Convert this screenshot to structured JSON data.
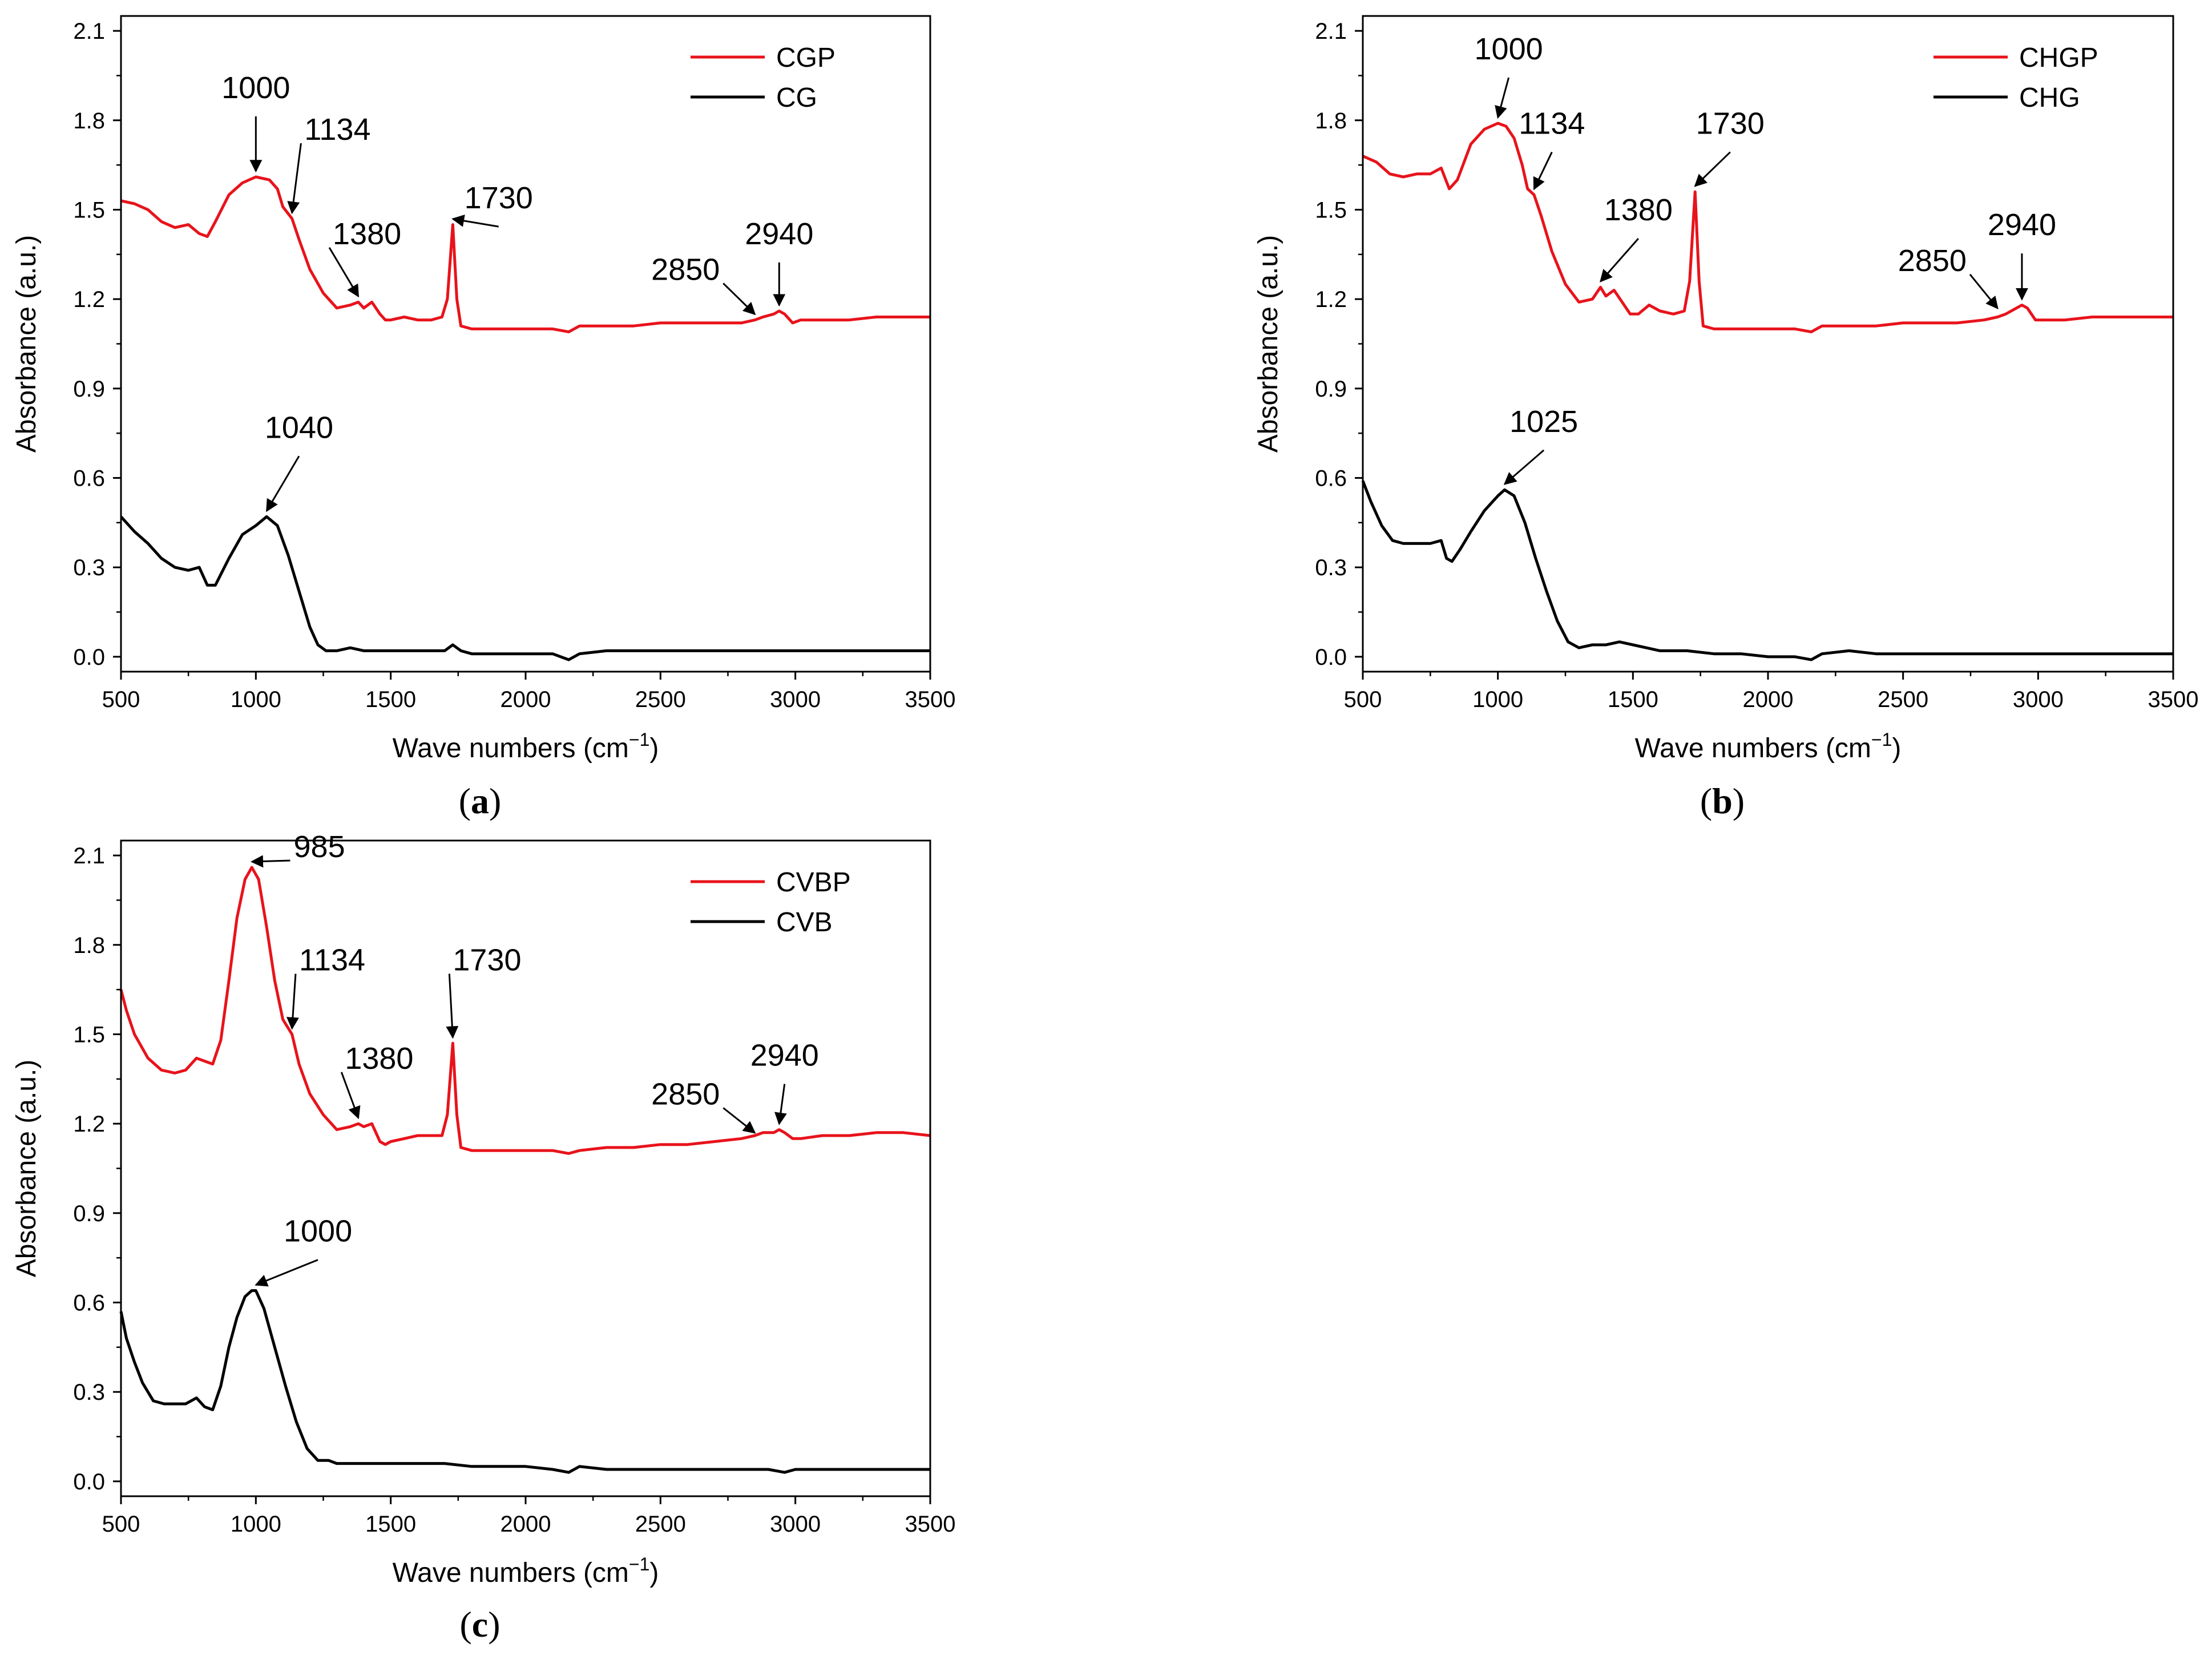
{
  "chart_data": [
    {
      "type": "line",
      "panel_label": "a",
      "xlabel": "Wave numbers (cm",
      "xlabel_sup": "−1",
      "xlabel_tail": ")",
      "ylabel": "Absorbance (a.u.)",
      "xlim": [
        500,
        3500
      ],
      "ylim": [
        -0.05,
        2.15
      ],
      "x_ticks": [
        500,
        1000,
        1500,
        2000,
        2500,
        3000,
        3500
      ],
      "y_ticks": [
        "0.0",
        "0.3",
        "0.6",
        "0.9",
        "1.2",
        "1.5",
        "1.8",
        "2.1"
      ],
      "legend_position": "top-right",
      "series": [
        {
          "name": "CGP",
          "color": "#e8131b",
          "x": [
            500,
            550,
            600,
            650,
            700,
            750,
            790,
            820,
            850,
            900,
            950,
            1000,
            1050,
            1080,
            1100,
            1134,
            1160,
            1200,
            1250,
            1300,
            1350,
            1380,
            1400,
            1430,
            1460,
            1480,
            1500,
            1550,
            1600,
            1650,
            1690,
            1710,
            1730,
            1745,
            1760,
            1800,
            1900,
            2000,
            2100,
            2160,
            2200,
            2300,
            2400,
            2500,
            2600,
            2700,
            2800,
            2850,
            2880,
            2920,
            2940,
            2960,
            2990,
            3020,
            3100,
            3200,
            3300,
            3400,
            3500
          ],
          "y": [
            1.53,
            1.52,
            1.5,
            1.46,
            1.44,
            1.45,
            1.42,
            1.41,
            1.46,
            1.55,
            1.59,
            1.61,
            1.6,
            1.57,
            1.51,
            1.47,
            1.4,
            1.3,
            1.22,
            1.17,
            1.18,
            1.19,
            1.17,
            1.19,
            1.15,
            1.13,
            1.13,
            1.14,
            1.13,
            1.13,
            1.14,
            1.2,
            1.45,
            1.2,
            1.11,
            1.1,
            1.1,
            1.1,
            1.1,
            1.09,
            1.11,
            1.11,
            1.11,
            1.12,
            1.12,
            1.12,
            1.12,
            1.13,
            1.14,
            1.15,
            1.16,
            1.15,
            1.12,
            1.13,
            1.13,
            1.13,
            1.14,
            1.14,
            1.14
          ]
        },
        {
          "name": "CG",
          "color": "#000000",
          "x": [
            500,
            550,
            600,
            650,
            700,
            750,
            790,
            820,
            850,
            900,
            950,
            1000,
            1040,
            1080,
            1120,
            1160,
            1200,
            1230,
            1260,
            1300,
            1350,
            1400,
            1500,
            1600,
            1700,
            1730,
            1760,
            1800,
            1900,
            2000,
            2100,
            2160,
            2200,
            2300,
            2400,
            2500,
            3000,
            3500
          ],
          "y": [
            0.47,
            0.42,
            0.38,
            0.33,
            0.3,
            0.29,
            0.3,
            0.24,
            0.24,
            0.33,
            0.41,
            0.44,
            0.47,
            0.44,
            0.34,
            0.22,
            0.1,
            0.04,
            0.02,
            0.02,
            0.03,
            0.02,
            0.02,
            0.02,
            0.02,
            0.04,
            0.02,
            0.01,
            0.01,
            0.01,
            0.01,
            -0.01,
            0.01,
            0.02,
            0.02,
            0.02,
            0.02,
            0.02
          ]
        }
      ],
      "annotations": [
        {
          "text": "1000",
          "x": 1000,
          "y": 1.61,
          "tx": 1000,
          "ty": 1.84,
          "align": "middle"
        },
        {
          "text": "1134",
          "x": 1134,
          "y": 1.47,
          "tx": 1180,
          "ty": 1.7,
          "align": "start"
        },
        {
          "text": "1380",
          "x": 1380,
          "y": 1.19,
          "tx": 1285,
          "ty": 1.35,
          "align": "start"
        },
        {
          "text": "1730",
          "x": 1730,
          "y": 1.45,
          "tx": 1900,
          "ty": 1.47,
          "align": "middle"
        },
        {
          "text": "2850",
          "x": 2850,
          "y": 1.13,
          "tx": 2720,
          "ty": 1.23,
          "align": "end"
        },
        {
          "text": "2940",
          "x": 2940,
          "y": 1.16,
          "tx": 2940,
          "ty": 1.35,
          "align": "middle"
        },
        {
          "text": "1040",
          "x": 1040,
          "y": 0.47,
          "tx": 1160,
          "ty": 0.7,
          "align": "middle"
        }
      ]
    },
    {
      "type": "line",
      "panel_label": "b",
      "xlabel": "Wave numbers (cm",
      "xlabel_sup": "−1",
      "xlabel_tail": ")",
      "ylabel": "Absorbance (a.u.)",
      "xlim": [
        500,
        3500
      ],
      "ylim": [
        -0.05,
        2.15
      ],
      "x_ticks": [
        500,
        1000,
        1500,
        2000,
        2500,
        3000,
        3500
      ],
      "y_ticks": [
        "0.0",
        "0.3",
        "0.6",
        "0.9",
        "1.2",
        "1.5",
        "1.8",
        "2.1"
      ],
      "legend_position": "top-right",
      "series": [
        {
          "name": "CHGP",
          "color": "#e8131b",
          "x": [
            500,
            550,
            600,
            650,
            700,
            750,
            790,
            820,
            850,
            900,
            950,
            1000,
            1030,
            1060,
            1090,
            1110,
            1134,
            1160,
            1200,
            1250,
            1300,
            1350,
            1380,
            1400,
            1430,
            1460,
            1490,
            1520,
            1560,
            1600,
            1650,
            1690,
            1710,
            1730,
            1745,
            1760,
            1800,
            1900,
            2000,
            2100,
            2160,
            2200,
            2300,
            2400,
            2500,
            2600,
            2700,
            2800,
            2850,
            2880,
            2920,
            2940,
            2960,
            2990,
            3020,
            3100,
            3200,
            3300,
            3400,
            3500
          ],
          "y": [
            1.68,
            1.66,
            1.62,
            1.61,
            1.62,
            1.62,
            1.64,
            1.57,
            1.6,
            1.72,
            1.77,
            1.79,
            1.78,
            1.74,
            1.65,
            1.57,
            1.55,
            1.48,
            1.36,
            1.25,
            1.19,
            1.2,
            1.24,
            1.21,
            1.23,
            1.19,
            1.15,
            1.15,
            1.18,
            1.16,
            1.15,
            1.16,
            1.26,
            1.56,
            1.26,
            1.11,
            1.1,
            1.1,
            1.1,
            1.1,
            1.09,
            1.11,
            1.11,
            1.11,
            1.12,
            1.12,
            1.12,
            1.13,
            1.14,
            1.15,
            1.17,
            1.18,
            1.17,
            1.13,
            1.13,
            1.13,
            1.14,
            1.14,
            1.14,
            1.14
          ]
        },
        {
          "name": "CHG",
          "color": "#000000",
          "x": [
            500,
            530,
            570,
            610,
            650,
            700,
            750,
            790,
            810,
            830,
            860,
            900,
            950,
            1000,
            1025,
            1060,
            1100,
            1140,
            1180,
            1220,
            1260,
            1300,
            1350,
            1400,
            1450,
            1500,
            1550,
            1600,
            1700,
            1800,
            1900,
            2000,
            2100,
            2160,
            2200,
            2300,
            2400,
            2500,
            3000,
            3500
          ],
          "y": [
            0.59,
            0.52,
            0.44,
            0.39,
            0.38,
            0.38,
            0.38,
            0.39,
            0.33,
            0.32,
            0.36,
            0.42,
            0.49,
            0.54,
            0.56,
            0.54,
            0.45,
            0.33,
            0.22,
            0.12,
            0.05,
            0.03,
            0.04,
            0.04,
            0.05,
            0.04,
            0.03,
            0.02,
            0.02,
            0.01,
            0.01,
            0.0,
            0.0,
            -0.01,
            0.01,
            0.02,
            0.01,
            0.01,
            0.01,
            0.01
          ]
        }
      ],
      "annotations": [
        {
          "text": "1000",
          "x": 1000,
          "y": 1.79,
          "tx": 1040,
          "ty": 1.97,
          "align": "middle"
        },
        {
          "text": "1134",
          "x": 1134,
          "y": 1.55,
          "tx": 1200,
          "ty": 1.72,
          "align": "middle"
        },
        {
          "text": "1730",
          "x": 1730,
          "y": 1.56,
          "tx": 1860,
          "ty": 1.72,
          "align": "middle"
        },
        {
          "text": "1380",
          "x": 1380,
          "y": 1.24,
          "tx": 1520,
          "ty": 1.43,
          "align": "middle"
        },
        {
          "text": "2850",
          "x": 2850,
          "y": 1.15,
          "tx": 2735,
          "ty": 1.26,
          "align": "end"
        },
        {
          "text": "2940",
          "x": 2940,
          "y": 1.18,
          "tx": 2940,
          "ty": 1.38,
          "align": "middle"
        },
        {
          "text": "1025",
          "x": 1025,
          "y": 0.56,
          "tx": 1170,
          "ty": 0.72,
          "align": "middle"
        }
      ]
    },
    {
      "type": "line",
      "panel_label": "c",
      "xlabel": "Wave numbers (cm",
      "xlabel_sup": "−1",
      "xlabel_tail": ")",
      "ylabel": "Absorbance (a.u.)",
      "xlim": [
        500,
        3500
      ],
      "ylim": [
        -0.05,
        2.15
      ],
      "x_ticks": [
        500,
        1000,
        1500,
        2000,
        2500,
        3000,
        3500
      ],
      "y_ticks": [
        "0.0",
        "0.3",
        "0.6",
        "0.9",
        "1.2",
        "1.5",
        "1.8",
        "2.1"
      ],
      "legend_position": "top-right",
      "series": [
        {
          "name": "CVBP",
          "color": "#e8131b",
          "x": [
            500,
            520,
            550,
            600,
            650,
            700,
            740,
            780,
            810,
            840,
            870,
            900,
            930,
            960,
            985,
            1010,
            1040,
            1070,
            1100,
            1134,
            1160,
            1200,
            1250,
            1300,
            1350,
            1380,
            1400,
            1430,
            1460,
            1480,
            1500,
            1550,
            1600,
            1650,
            1690,
            1710,
            1730,
            1745,
            1760,
            1800,
            1900,
            2000,
            2100,
            2160,
            2200,
            2300,
            2400,
            2500,
            2600,
            2700,
            2800,
            2850,
            2880,
            2920,
            2940,
            2960,
            2990,
            3020,
            3100,
            3200,
            3300,
            3400,
            3500
          ],
          "y": [
            1.65,
            1.58,
            1.5,
            1.42,
            1.38,
            1.37,
            1.38,
            1.42,
            1.41,
            1.4,
            1.48,
            1.68,
            1.89,
            2.02,
            2.06,
            2.02,
            1.86,
            1.68,
            1.55,
            1.5,
            1.4,
            1.3,
            1.23,
            1.18,
            1.19,
            1.2,
            1.19,
            1.2,
            1.14,
            1.13,
            1.14,
            1.15,
            1.16,
            1.16,
            1.16,
            1.23,
            1.47,
            1.23,
            1.12,
            1.11,
            1.11,
            1.11,
            1.11,
            1.1,
            1.11,
            1.12,
            1.12,
            1.13,
            1.13,
            1.14,
            1.15,
            1.16,
            1.17,
            1.17,
            1.18,
            1.17,
            1.15,
            1.15,
            1.16,
            1.16,
            1.17,
            1.17,
            1.16
          ]
        },
        {
          "name": "CVB",
          "color": "#000000",
          "x": [
            500,
            520,
            550,
            580,
            620,
            660,
            700,
            740,
            780,
            810,
            840,
            870,
            900,
            930,
            960,
            985,
            1000,
            1030,
            1070,
            1110,
            1150,
            1190,
            1230,
            1270,
            1300,
            1400,
            1500,
            1600,
            1650,
            1700,
            1800,
            1900,
            2000,
            2100,
            2160,
            2200,
            2300,
            2400,
            2500,
            2600,
            2700,
            2800,
            2900,
            2960,
            3000,
            3100,
            3200,
            3300,
            3400,
            3500
          ],
          "y": [
            0.57,
            0.48,
            0.4,
            0.33,
            0.27,
            0.26,
            0.26,
            0.26,
            0.28,
            0.25,
            0.24,
            0.32,
            0.45,
            0.55,
            0.62,
            0.64,
            0.64,
            0.58,
            0.45,
            0.32,
            0.2,
            0.11,
            0.07,
            0.07,
            0.06,
            0.06,
            0.06,
            0.06,
            0.06,
            0.06,
            0.05,
            0.05,
            0.05,
            0.04,
            0.03,
            0.05,
            0.04,
            0.04,
            0.04,
            0.04,
            0.04,
            0.04,
            0.04,
            0.03,
            0.04,
            0.04,
            0.04,
            0.04,
            0.04,
            0.04
          ]
        }
      ],
      "annotations": [
        {
          "text": "985",
          "x": 985,
          "y": 2.06,
          "tx": 1140,
          "ty": 2.06,
          "align": "start"
        },
        {
          "text": "1134",
          "x": 1134,
          "y": 1.5,
          "tx": 1160,
          "ty": 1.68,
          "align": "start"
        },
        {
          "text": "1380",
          "x": 1380,
          "y": 1.2,
          "tx": 1330,
          "ty": 1.35,
          "align": "start"
        },
        {
          "text": "1730",
          "x": 1730,
          "y": 1.47,
          "tx": 1730,
          "ty": 1.68,
          "align": "start"
        },
        {
          "text": "2850",
          "x": 2850,
          "y": 1.15,
          "tx": 2720,
          "ty": 1.23,
          "align": "end"
        },
        {
          "text": "2940",
          "x": 2940,
          "y": 1.18,
          "tx": 2960,
          "ty": 1.36,
          "align": "middle"
        },
        {
          "text": "1000",
          "x": 1000,
          "y": 0.64,
          "tx": 1230,
          "ty": 0.77,
          "align": "middle"
        }
      ]
    }
  ]
}
